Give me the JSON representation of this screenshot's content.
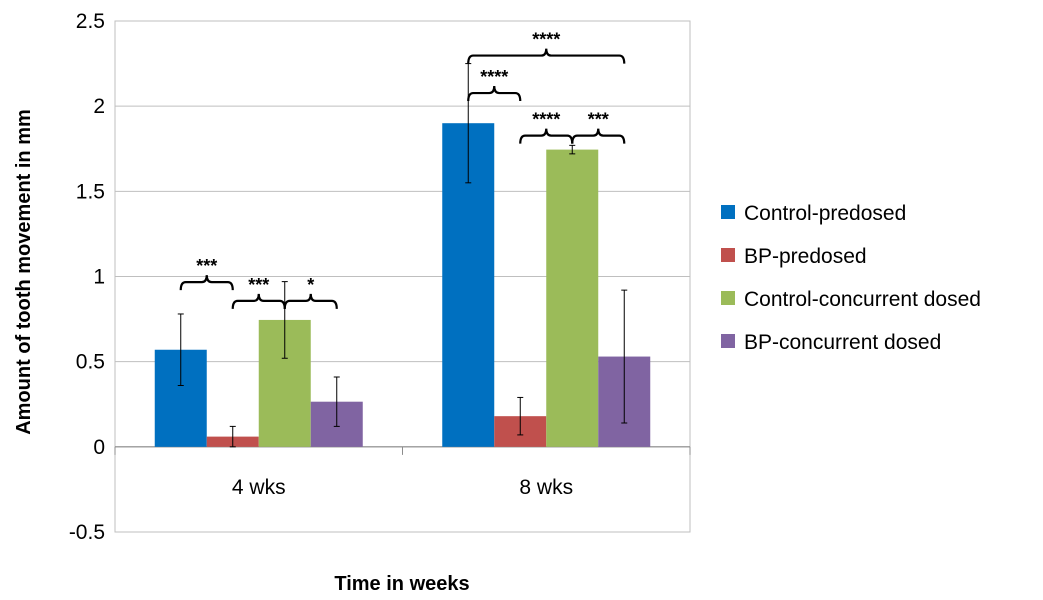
{
  "chart_data": {
    "type": "bar",
    "categories": [
      "4 wks",
      "8 wks"
    ],
    "series": [
      {
        "name": "Control-predosed",
        "values": [
          0.57,
          1.9
        ],
        "errors": [
          0.21,
          0.35
        ],
        "color": "#0070C0"
      },
      {
        "name": "BP-predosed",
        "values": [
          0.06,
          0.18
        ],
        "errors": [
          0.06,
          0.11
        ],
        "color": "#C0504D"
      },
      {
        "name": "Control-concurrent dosed",
        "values": [
          0.745,
          1.745
        ],
        "errors": [
          0.225,
          0.025
        ],
        "color": "#9BBB59"
      },
      {
        "name": "BP-concurrent dosed",
        "values": [
          0.265,
          0.53
        ],
        "errors": [
          0.145,
          0.39
        ],
        "color": "#8064A2"
      }
    ],
    "xlabel": "Time in weeks",
    "ylabel": "Amount of tooth movement in mm",
    "ylim": [
      -0.5,
      2.5
    ],
    "yticks": [
      "-0.5",
      "0",
      "0.5",
      "1",
      "1.5",
      "2",
      "2.5"
    ],
    "grid": true,
    "legend_position": "right",
    "annotations": [
      {
        "text": "***",
        "category": 0,
        "from_series": 0,
        "to_series": 1,
        "y": 0.92
      },
      {
        "text": "***",
        "category": 0,
        "from_series": 1,
        "to_series": 2,
        "y": 0.81
      },
      {
        "text": "*",
        "category": 0,
        "from_series": 2,
        "to_series": 3,
        "y": 0.81
      },
      {
        "text": "****",
        "category": 1,
        "from_series": 0,
        "to_series": 1,
        "y": 2.03
      },
      {
        "text": "****",
        "category": 1,
        "from_series": 1,
        "to_series": 2,
        "y": 1.78
      },
      {
        "text": "***",
        "category": 1,
        "from_series": 2,
        "to_series": 3,
        "y": 1.78
      },
      {
        "text": "****",
        "category": 1,
        "from_series": 0,
        "to_series": 3,
        "y": 2.25
      }
    ]
  }
}
